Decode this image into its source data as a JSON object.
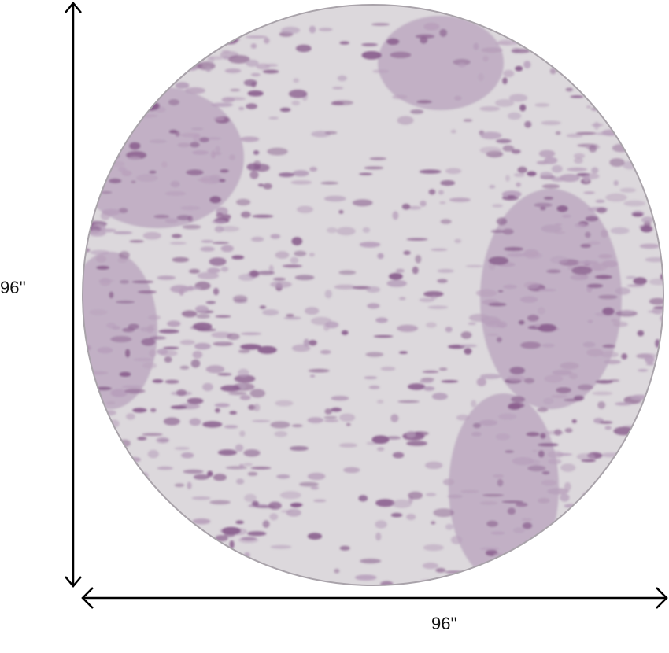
{
  "dimensions": {
    "height_label": "96''",
    "width_label": "96''"
  },
  "product": {
    "shape": "round",
    "colors": {
      "base": "#dcd8dc",
      "accent": "#8a5f8e",
      "light_accent": "#b79fbb"
    }
  }
}
